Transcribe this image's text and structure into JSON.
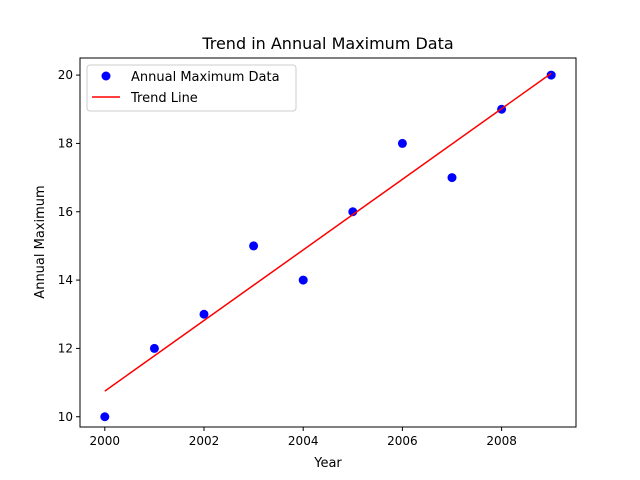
{
  "chart_data": {
    "type": "scatter",
    "title": "Trend in Annual Maximum Data",
    "xlabel": "Year",
    "ylabel": "Annual Maximum",
    "xlim": [
      1999.5,
      2009.5
    ],
    "ylim": [
      9.7,
      20.5
    ],
    "xticks": [
      2000,
      2002,
      2004,
      2006,
      2008
    ],
    "yticks": [
      10,
      12,
      14,
      16,
      18,
      20
    ],
    "grid": false,
    "legend_position": "top-left",
    "series": [
      {
        "name": "Annual Maximum Data",
        "kind": "scatter",
        "color": "#0000ff",
        "x": [
          2000,
          2001,
          2002,
          2003,
          2004,
          2005,
          2006,
          2007,
          2008,
          2009
        ],
        "y": [
          10,
          12,
          13,
          15,
          14,
          16,
          18,
          17,
          19,
          20
        ]
      },
      {
        "name": "Trend Line",
        "kind": "line",
        "color": "#ff0000",
        "x": [
          2000,
          2009
        ],
        "y": [
          10.75,
          20.05
        ]
      }
    ]
  }
}
